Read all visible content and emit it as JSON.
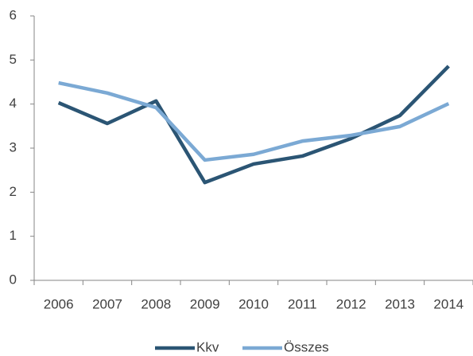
{
  "chart_data": {
    "type": "line",
    "categories": [
      "2006",
      "2007",
      "2008",
      "2009",
      "2010",
      "2011",
      "2012",
      "2013",
      "2014"
    ],
    "series": [
      {
        "name": "Kkv",
        "color": "#2b5574",
        "values": [
          4.03,
          3.56,
          4.07,
          2.22,
          2.64,
          2.82,
          3.22,
          3.74,
          4.86
        ]
      },
      {
        "name": "Összes",
        "color": "#7ba9d4",
        "values": [
          4.48,
          4.25,
          3.92,
          2.73,
          2.86,
          3.16,
          3.29,
          3.49,
          4.01
        ]
      }
    ],
    "ylim": [
      0,
      6
    ],
    "yticks": [
      0,
      1,
      2,
      3,
      4,
      5,
      6
    ],
    "grid": false,
    "legend": "bottom"
  }
}
